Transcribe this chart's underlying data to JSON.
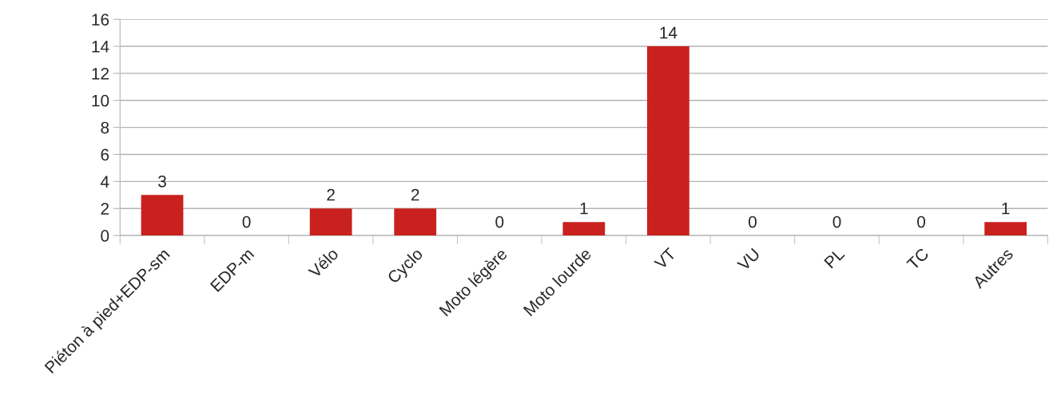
{
  "chart_data": {
    "type": "bar",
    "categories": [
      "Piéton à pied+EDP-sm",
      "EDP-m",
      "Vélo",
      "Cyclo",
      "Moto légère",
      "Moto lourde",
      "VT",
      "VU",
      "PL",
      "TC",
      "Autres"
    ],
    "values": [
      3,
      0,
      2,
      2,
      0,
      1,
      14,
      0,
      0,
      0,
      1
    ],
    "color": "#c9211e",
    "ylim": [
      0,
      16
    ],
    "yticks": [
      0,
      2,
      4,
      6,
      8,
      10,
      12,
      14,
      16
    ],
    "grid": "y",
    "data_labels": true
  }
}
